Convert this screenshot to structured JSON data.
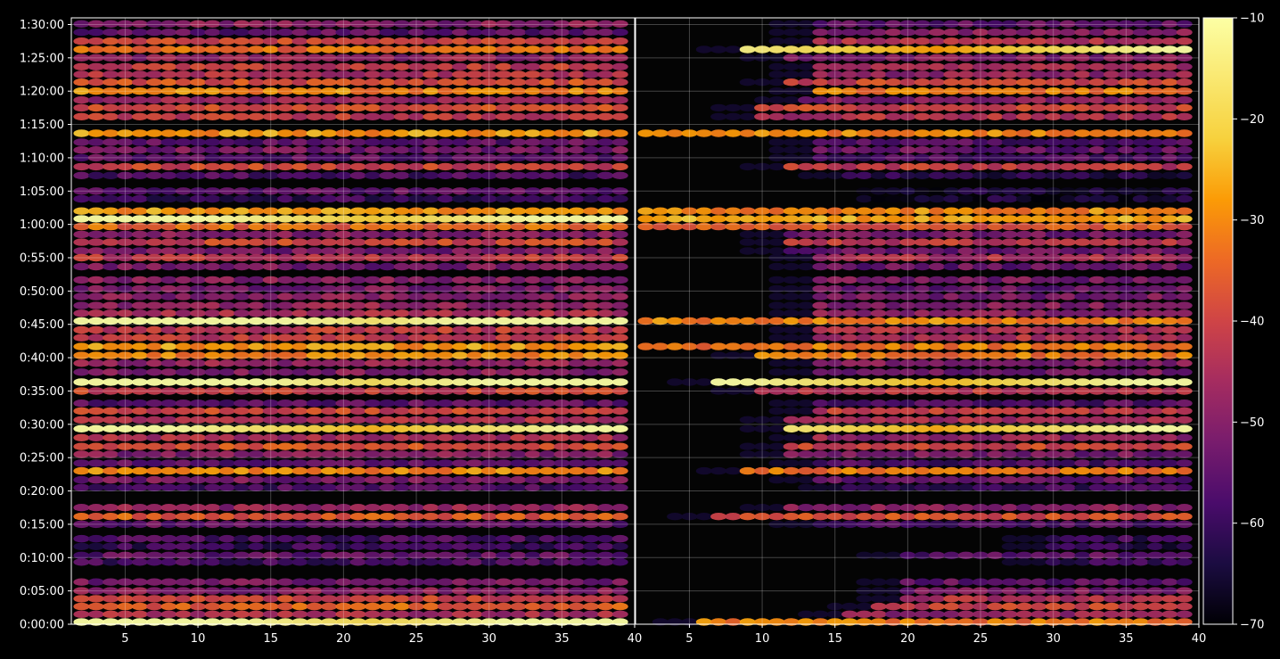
{
  "chart_data": {
    "type": "heatmap",
    "colormap": "inferno",
    "background": "#000000",
    "title": "",
    "xlabel": "",
    "ylabel": "",
    "grid": true,
    "panels": [
      {
        "name": "left",
        "xlim": [
          1.3,
          40
        ],
        "xticks": [
          5,
          10,
          15,
          20,
          25,
          30,
          35,
          40
        ]
      },
      {
        "name": "right",
        "xlim": [
          1.3,
          40
        ],
        "xticks": [
          5,
          10,
          15,
          20,
          25,
          30,
          35,
          40
        ]
      }
    ],
    "ylim_seconds": [
      0,
      5460
    ],
    "yticks": [
      {
        "value": 0,
        "label": "0:00:00"
      },
      {
        "value": 300,
        "label": "0:05:00"
      },
      {
        "value": 600,
        "label": "0:10:00"
      },
      {
        "value": 900,
        "label": "0:15:00"
      },
      {
        "value": 1200,
        "label": "0:20:00"
      },
      {
        "value": 1500,
        "label": "0:25:00"
      },
      {
        "value": 1800,
        "label": "0:30:00"
      },
      {
        "value": 2100,
        "label": "0:35:00"
      },
      {
        "value": 2400,
        "label": "0:40:00"
      },
      {
        "value": 2700,
        "label": "0:45:00"
      },
      {
        "value": 3000,
        "label": "0:50:00"
      },
      {
        "value": 3300,
        "label": "0:55:00"
      },
      {
        "value": 3600,
        "label": "1:00:00"
      },
      {
        "value": 3900,
        "label": "1:05:00"
      },
      {
        "value": 4200,
        "label": "1:10:00"
      },
      {
        "value": 4500,
        "label": "1:15:00"
      },
      {
        "value": 4800,
        "label": "1:20:00"
      },
      {
        "value": 5100,
        "label": "1:25:00"
      },
      {
        "value": 5400,
        "label": "1:30:00"
      }
    ],
    "colorbar": {
      "min": -70,
      "max": -10,
      "ticks": [
        -10,
        -20,
        -30,
        -40,
        -50,
        -60,
        -70
      ],
      "tick_labels": [
        "−10",
        "−20",
        "−30",
        "−40",
        "−50",
        "−60",
        "−70"
      ]
    },
    "bands": [
      {
        "t": 5405,
        "left": -50,
        "right": -55,
        "right_start": 14
      },
      {
        "t": 5330,
        "left": -55,
        "right": -50,
        "right_start": 14
      },
      {
        "t": 5250,
        "left": -40,
        "right": -45,
        "right_start": 14
      },
      {
        "t": 5175,
        "left": -34,
        "right": -36,
        "right_start": 9,
        "peak_right": -28
      },
      {
        "t": 5100,
        "left": -48,
        "right": -50,
        "right_start": 12
      },
      {
        "t": 5020,
        "left": -42,
        "right": -45,
        "right_start": 14
      },
      {
        "t": 4950,
        "left": -44,
        "right": -48,
        "right_start": 14
      },
      {
        "t": 4880,
        "left": -38,
        "right": -40,
        "right_start": 12
      },
      {
        "t": 4800,
        "left": -30,
        "right": -32,
        "right_start": 14
      },
      {
        "t": 4720,
        "left": -48,
        "right": -50,
        "right_start": 13
      },
      {
        "t": 4650,
        "left": -38,
        "right": -40,
        "right_start": 10
      },
      {
        "t": 4570,
        "left": -42,
        "right": -44,
        "right_start": 10
      },
      {
        "t": 4420,
        "left": -28,
        "right": -30,
        "right_start": 2
      },
      {
        "t": 4340,
        "left": -55,
        "right": -57,
        "right_start": 14
      },
      {
        "t": 4270,
        "left": -52,
        "right": -54,
        "right_start": 14
      },
      {
        "t": 4200,
        "left": -55,
        "right": -57,
        "right_start": 14
      },
      {
        "t": 4120,
        "left": -40,
        "right": -42,
        "right_start": 12
      },
      {
        "t": 4040,
        "left": -58,
        "right": -62,
        "right_start": 16
      },
      {
        "t": 3900,
        "left": -55,
        "right": -65,
        "right_start": 20
      },
      {
        "t": 3830,
        "left": -60,
        "right": -65,
        "right_start": 20
      },
      {
        "t": 3720,
        "left": -28,
        "right": -30,
        "right_start": 2
      },
      {
        "t": 3650,
        "left": -24,
        "right": -26,
        "right_start": 2,
        "peak_left": -22
      },
      {
        "t": 3580,
        "left": -34,
        "right": -36,
        "right_start": 2
      },
      {
        "t": 3510,
        "left": -50,
        "right": -52,
        "right_start": 12
      },
      {
        "t": 3440,
        "left": -40,
        "right": -42,
        "right_start": 12
      },
      {
        "t": 3360,
        "left": -52,
        "right": -54,
        "right_start": 12
      },
      {
        "t": 3300,
        "left": -42,
        "right": -45,
        "right_start": 14
      },
      {
        "t": 3220,
        "left": -52,
        "right": -54,
        "right_start": 14
      },
      {
        "t": 3100,
        "left": -50,
        "right": -52,
        "right_start": 14
      },
      {
        "t": 3020,
        "left": -52,
        "right": -54,
        "right_start": 14
      },
      {
        "t": 2950,
        "left": -50,
        "right": -52,
        "right_start": 14
      },
      {
        "t": 2870,
        "left": -48,
        "right": -50,
        "right_start": 14
      },
      {
        "t": 2800,
        "left": -45,
        "right": -48,
        "right_start": 14
      },
      {
        "t": 2730,
        "left": -24,
        "right": -30,
        "right_start": 2,
        "peak_left": -16
      },
      {
        "t": 2650,
        "left": -42,
        "right": -45,
        "right_start": 14
      },
      {
        "t": 2580,
        "left": -42,
        "right": -44,
        "right_start": 14
      },
      {
        "t": 2500,
        "left": -28,
        "right": -32,
        "right_start": 2
      },
      {
        "t": 2420,
        "left": -30,
        "right": -32,
        "right_start": 10
      },
      {
        "t": 2350,
        "left": -48,
        "right": -50,
        "right_start": 14
      },
      {
        "t": 2270,
        "left": -50,
        "right": -52,
        "right_start": 14
      },
      {
        "t": 2180,
        "left": -30,
        "right": -32,
        "right_start": 7,
        "peak_left": -18,
        "peak_right": -25
      },
      {
        "t": 2100,
        "left": -40,
        "right": -42,
        "right_start": 10
      },
      {
        "t": 1990,
        "left": -55,
        "right": -57,
        "right_start": 14
      },
      {
        "t": 1920,
        "left": -40,
        "right": -42,
        "right_start": 14
      },
      {
        "t": 1840,
        "left": -45,
        "right": -46,
        "right_start": 12
      },
      {
        "t": 1760,
        "left": -34,
        "right": -36,
        "right_start": 12,
        "peak_left": -25,
        "peak_right": -26
      },
      {
        "t": 1680,
        "left": -45,
        "right": -48,
        "right_start": 14
      },
      {
        "t": 1600,
        "left": -38,
        "right": -40,
        "right_start": 12
      },
      {
        "t": 1530,
        "left": -50,
        "right": -52,
        "right_start": 12
      },
      {
        "t": 1450,
        "left": -55,
        "right": -58,
        "right_start": 14
      },
      {
        "t": 1380,
        "left": -30,
        "right": -32,
        "right_start": 9
      },
      {
        "t": 1300,
        "left": -52,
        "right": -55,
        "right_start": 14
      },
      {
        "t": 1230,
        "left": -58,
        "right": -60,
        "right_start": 16
      },
      {
        "t": 1050,
        "left": -48,
        "right": -50,
        "right_start": 12
      },
      {
        "t": 970,
        "left": -36,
        "right": -38,
        "right_start": 7
      },
      {
        "t": 900,
        "left": -55,
        "right": -57,
        "right_start": 14
      },
      {
        "t": 770,
        "left": -58,
        "right": -60,
        "right_start": 30
      },
      {
        "t": 700,
        "left": -60,
        "right": -62,
        "right_start": 30
      },
      {
        "t": 620,
        "left": -55,
        "right": -56,
        "right_start": 20
      },
      {
        "t": 560,
        "left": -58,
        "right": -60,
        "right_start": 30
      },
      {
        "t": 380,
        "left": -52,
        "right": -55,
        "right_start": 20
      },
      {
        "t": 300,
        "left": -50,
        "right": -52,
        "right_start": 20
      },
      {
        "t": 230,
        "left": -40,
        "right": -44,
        "right_start": 20
      },
      {
        "t": 160,
        "left": -35,
        "right": -40,
        "right_start": 18
      },
      {
        "t": 90,
        "left": -45,
        "right": -48,
        "right_start": 16
      },
      {
        "t": 20,
        "left": -30,
        "right": -32,
        "right_start": 6,
        "peak_left": -20
      }
    ]
  }
}
